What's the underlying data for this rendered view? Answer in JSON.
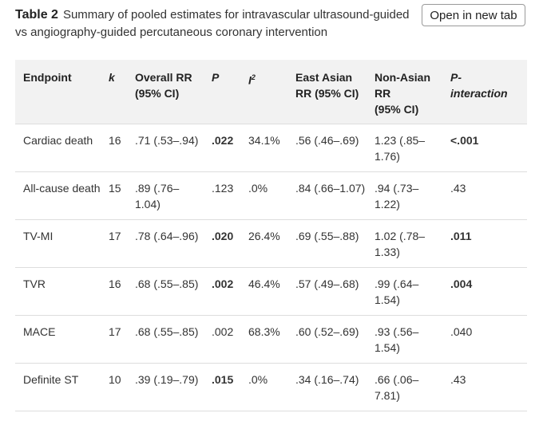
{
  "caption": {
    "label": "Table 2",
    "text": "Summary of pooled estimates for intravascular ultrasound-guided vs angiography-guided percutaneous coronary intervention"
  },
  "open_button_label": "Open in new tab",
  "headers": {
    "endpoint": "Endpoint",
    "k": "k",
    "overall_rr": "Overall RR (95% CI)",
    "p": "P",
    "i2_base": "I",
    "i2_sup": "2",
    "east_asian": "East Asian RR (95% CI)",
    "non_asian_line1": "Non-Asian",
    "non_asian_line2": "RR",
    "non_asian_line3": "(95% CI)",
    "p_int_line1": "P-",
    "p_int_line2": "interaction"
  },
  "rows": [
    {
      "endpoint": "Cardiac death",
      "k": "16",
      "overall": ".71 (.53–.94)",
      "p": ".022",
      "p_bold": true,
      "i2": "34.1%",
      "east": ".56 (.46–.69)",
      "non_asian": "1.23 (.85–1.76)",
      "p_int": "<.001",
      "p_int_bold": true
    },
    {
      "endpoint": "All-cause death",
      "k": "15",
      "overall": ".89 (.76–1.04)",
      "p": ".123",
      "p_bold": false,
      "i2": ".0%",
      "east": ".84 (.66–1.07)",
      "non_asian": ".94 (.73–1.22)",
      "p_int": ".43",
      "p_int_bold": false
    },
    {
      "endpoint": "TV-MI",
      "k": "17",
      "overall": ".78 (.64–.96)",
      "p": ".020",
      "p_bold": true,
      "i2": "26.4%",
      "east": ".69 (.55–.88)",
      "non_asian": "1.02 (.78–1.33)",
      "p_int": ".011",
      "p_int_bold": true
    },
    {
      "endpoint": "TVR",
      "k": "16",
      "overall": ".68 (.55–.85)",
      "p": ".002",
      "p_bold": true,
      "i2": "46.4%",
      "east": ".57 (.49–.68)",
      "non_asian": ".99 (.64–1.54)",
      "p_int": ".004",
      "p_int_bold": true
    },
    {
      "endpoint": "MACE",
      "k": "17",
      "overall": ".68 (.55–.85)",
      "p": ".002",
      "p_bold": false,
      "i2": "68.3%",
      "east": ".60 (.52–.69)",
      "non_asian": ".93 (.56–1.54)",
      "p_int": ".040",
      "p_int_bold": false
    },
    {
      "endpoint": "Definite ST",
      "k": "10",
      "overall": ".39 (.19–.79)",
      "p": ".015",
      "p_bold": true,
      "i2": ".0%",
      "east": ".34 (.16–.74)",
      "non_asian": ".66 (.06–7.81)",
      "p_int": ".43",
      "p_int_bold": false
    }
  ]
}
